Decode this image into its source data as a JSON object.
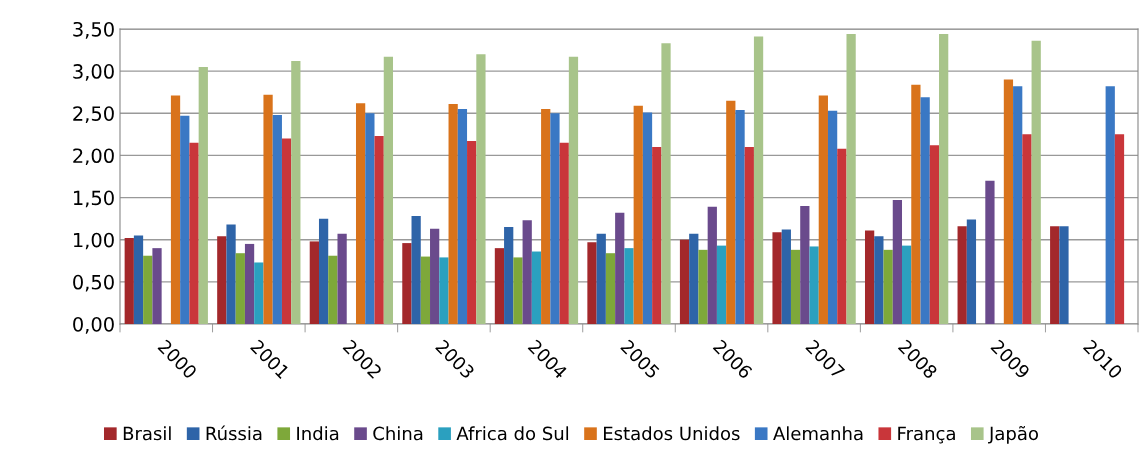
{
  "chart_data": {
    "type": "bar",
    "categories": [
      "2000",
      "2001",
      "2002",
      "2003",
      "2004",
      "2005",
      "2006",
      "2007",
      "2008",
      "2009",
      "2010"
    ],
    "ylim": [
      0,
      3.5
    ],
    "yticks": [
      {
        "value": 0,
        "label": "0,00"
      },
      {
        "value": 0.5,
        "label": "0,50"
      },
      {
        "value": 1,
        "label": "1,00"
      },
      {
        "value": 1.5,
        "label": "1,50"
      },
      {
        "value": 2,
        "label": "2,00"
      },
      {
        "value": 2.5,
        "label": "2,50"
      },
      {
        "value": 3,
        "label": "3,00"
      },
      {
        "value": 3.5,
        "label": "3,50"
      }
    ],
    "grid": "y",
    "legend": "bottom",
    "series": [
      {
        "name": "Brasil",
        "color": "#a3282b",
        "values": [
          1.02,
          1.04,
          0.98,
          0.96,
          0.9,
          0.97,
          1.0,
          1.09,
          1.11,
          1.16,
          1.16
        ]
      },
      {
        "name": "Rússia",
        "color": "#2e64a8",
        "values": [
          1.05,
          1.18,
          1.25,
          1.28,
          1.15,
          1.07,
          1.07,
          1.12,
          1.04,
          1.24,
          1.16
        ]
      },
      {
        "name": "India",
        "color": "#7ea83a",
        "values": [
          0.81,
          0.84,
          0.81,
          0.8,
          0.79,
          0.84,
          0.88,
          0.88,
          0.88,
          null,
          null
        ]
      },
      {
        "name": "China",
        "color": "#6a4a8c",
        "values": [
          0.9,
          0.95,
          1.07,
          1.13,
          1.23,
          1.32,
          1.39,
          1.4,
          1.47,
          1.7,
          null
        ]
      },
      {
        "name": "Africa do Sul",
        "color": "#2ba0bf",
        "values": [
          null,
          0.73,
          null,
          0.79,
          0.86,
          0.9,
          0.93,
          0.92,
          0.93,
          null,
          null
        ]
      },
      {
        "name": "Estados Unidos",
        "color": "#d9731b",
        "values": [
          2.71,
          2.72,
          2.62,
          2.61,
          2.55,
          2.59,
          2.65,
          2.71,
          2.84,
          2.9,
          null
        ]
      },
      {
        "name": "Alemanha",
        "color": "#3a78c4",
        "values": [
          2.47,
          2.48,
          2.5,
          2.55,
          2.5,
          2.51,
          2.54,
          2.53,
          2.69,
          2.82,
          2.82
        ]
      },
      {
        "name": "França",
        "color": "#c9363a",
        "values": [
          2.15,
          2.2,
          2.23,
          2.17,
          2.15,
          2.1,
          2.1,
          2.08,
          2.12,
          2.25,
          2.25
        ]
      },
      {
        "name": "Japão",
        "color": "#a8c48a",
        "values": [
          3.05,
          3.12,
          3.17,
          3.2,
          3.17,
          3.33,
          3.41,
          3.44,
          3.44,
          3.36,
          null
        ]
      }
    ]
  }
}
